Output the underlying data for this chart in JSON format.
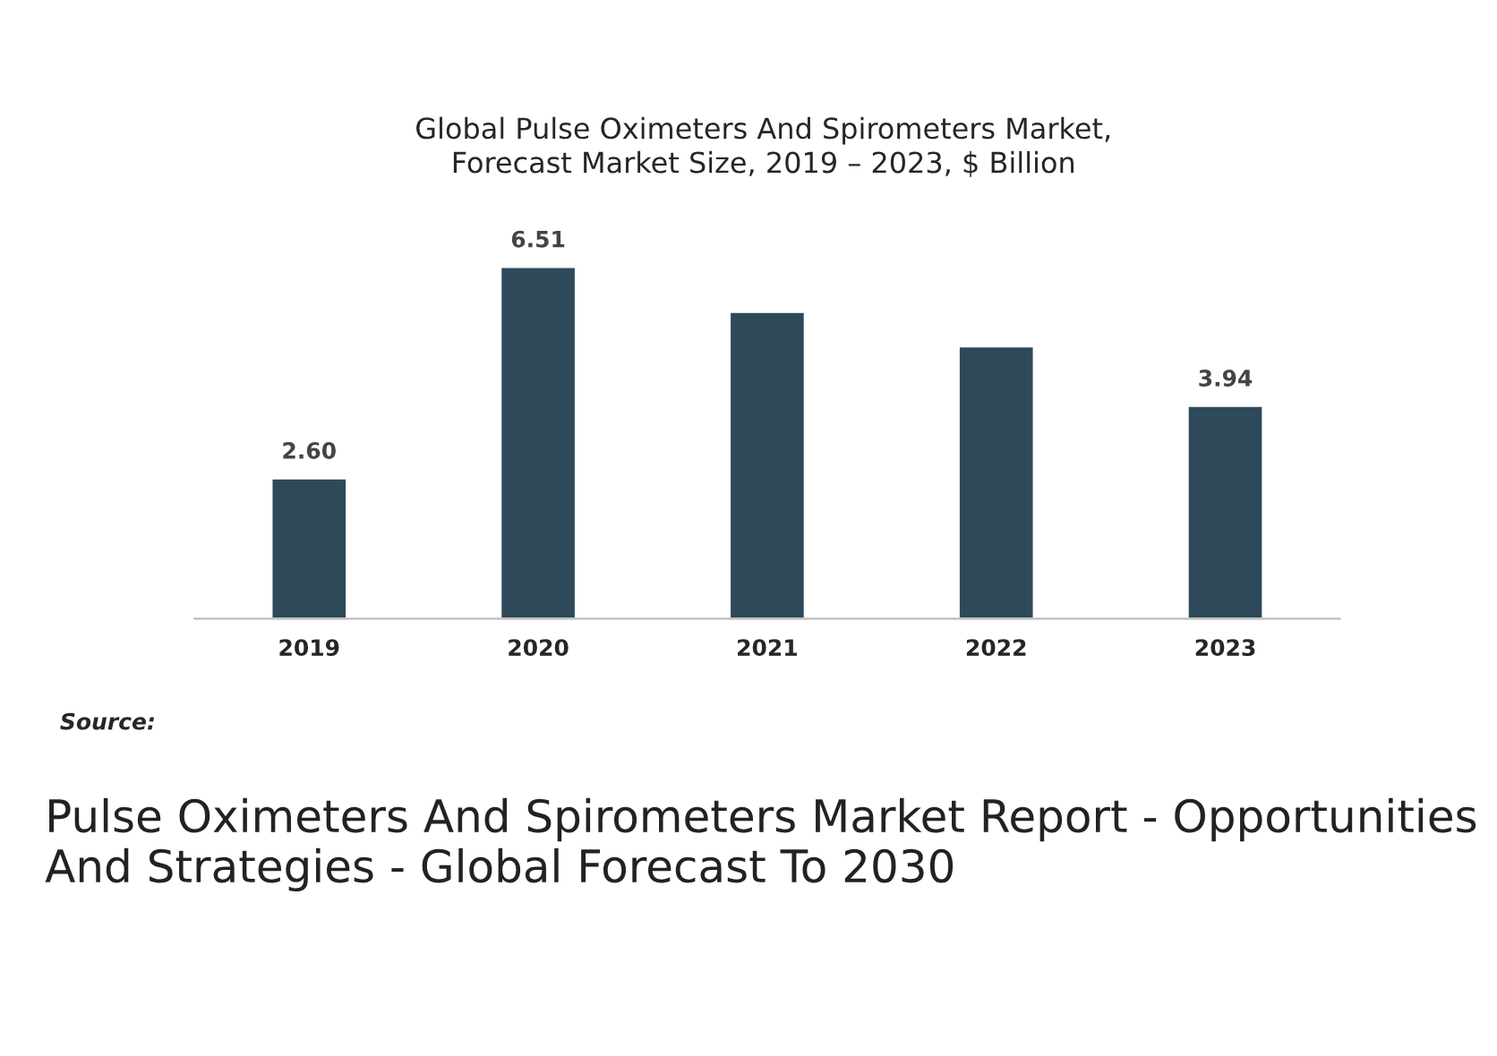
{
  "chart_data": {
    "type": "bar",
    "title": "Global Pulse Oximeters And Spirometers Market,\nForecast Market Size, 2019 – 2023, $ Billion",
    "categories": [
      "2019",
      "2020",
      "2021",
      "2022",
      "2023"
    ],
    "values": [
      2.6,
      6.51,
      5.68,
      5.04,
      3.94
    ],
    "color": "#2e4a5a",
    "value_labels": [
      "2.60",
      "6.51",
      null,
      null,
      "3.94"
    ],
    "annotations": [
      "Source:",
      "Pulse Oximeters And Spirometers Market Report - Opportunities And Strategies - Global Forecast To 2030"
    ],
    "grid": false,
    "legend": false
  }
}
